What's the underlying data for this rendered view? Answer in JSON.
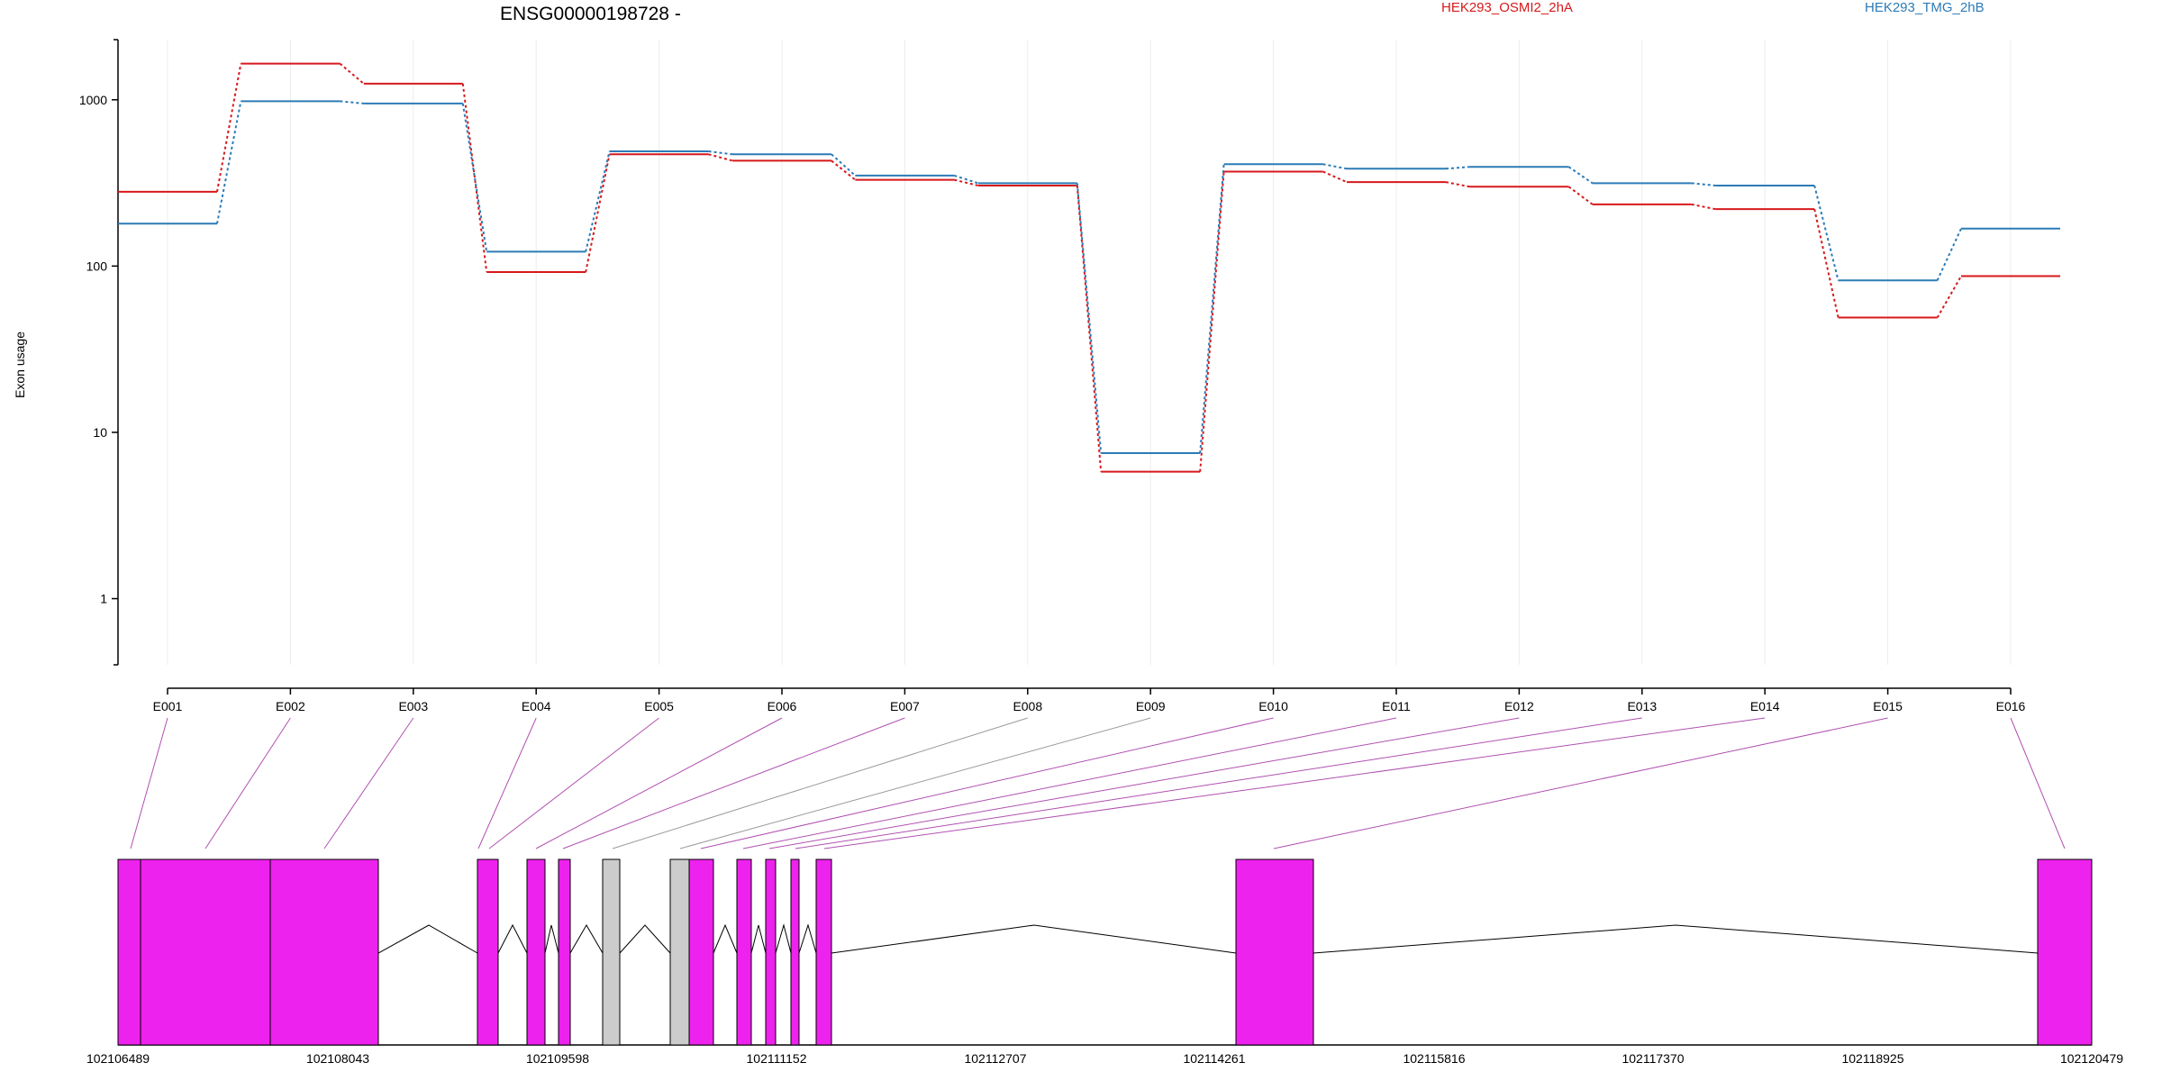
{
  "chart_data": {
    "type": "line",
    "title": "ENSG00000198728 -",
    "ylabel": "Exon usage",
    "xlabel": "",
    "yscale": "log",
    "ylim": [
      0.4,
      2300
    ],
    "yticks": [
      "1",
      "10",
      "100",
      "1000"
    ],
    "grid": "vertical-light",
    "legend": "top",
    "categories": [
      "E001",
      "E002",
      "E003",
      "E004",
      "E005",
      "E006",
      "E007",
      "E008",
      "E009",
      "E010",
      "E011",
      "E012",
      "E013",
      "E014",
      "E015",
      "E016"
    ],
    "series": [
      {
        "name": "HEK293_OSMI2_2hA",
        "color": "#d7191c",
        "values": [
          280,
          1650,
          1250,
          92,
          470,
          430,
          330,
          305,
          5.8,
          370,
          320,
          300,
          235,
          220,
          49,
          87
        ]
      },
      {
        "name": "HEK293_TMG_2hB",
        "color": "#2c7bb6",
        "values": [
          180,
          980,
          950,
          122,
          490,
          470,
          350,
          315,
          7.5,
          410,
          385,
          395,
          315,
          305,
          82,
          168
        ]
      }
    ],
    "gene_model": {
      "coordinate_labels": [
        "102106489",
        "102108043",
        "102109598",
        "102111152",
        "102112707",
        "102114261",
        "102115816",
        "102117370",
        "102118925",
        "102120479"
      ],
      "exon_color": "#ee22ee",
      "not_tested_color": "#cccccc",
      "line_color": "#b050b0"
    }
  }
}
